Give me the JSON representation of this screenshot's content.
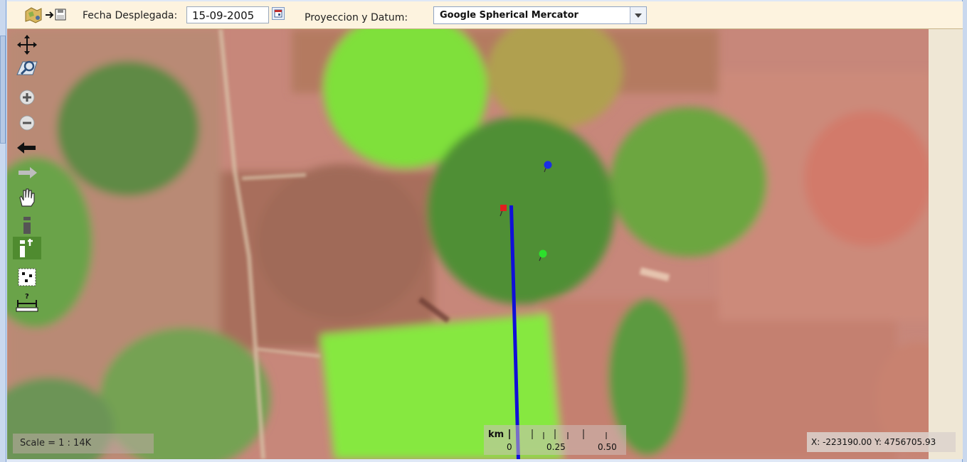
{
  "toolbar": {
    "date_label": "Fecha Desplegada:",
    "date_value": "15-09-2005",
    "projection_label": "Proyeccion y Datum:",
    "projection_value": "Google Spherical Mercator"
  },
  "icons": {
    "export": "map-export-save-icon",
    "calendar": "calendar-icon",
    "dropdown": "chevron-down-icon"
  },
  "tools": [
    {
      "name": "pan-arrows-icon"
    },
    {
      "name": "zoom-extent-icon"
    },
    {
      "name": "zoom-in-icon"
    },
    {
      "name": "zoom-out-icon"
    },
    {
      "name": "previous-view-icon"
    },
    {
      "name": "next-view-icon"
    },
    {
      "name": "hand-pan-icon"
    },
    {
      "name": "info-icon"
    },
    {
      "name": "info-time-icon",
      "active": true
    },
    {
      "name": "select-points-icon"
    },
    {
      "name": "measure-icon"
    }
  ],
  "map": {
    "markers": [
      {
        "name": "blue-marker",
        "color": "#1b2ee6"
      },
      {
        "name": "red-marker",
        "color": "#e11f1f"
      },
      {
        "name": "green-marker",
        "color": "#2ce02c"
      }
    ],
    "line_color": "#1010d8"
  },
  "status": {
    "scale": "Scale = 1 : 14K",
    "scalebar_unit": "km",
    "scalebar_labels": [
      "0",
      "0.25",
      "0.50"
    ],
    "coordinates": "X: -223190.00 Y: 4756705.93"
  }
}
